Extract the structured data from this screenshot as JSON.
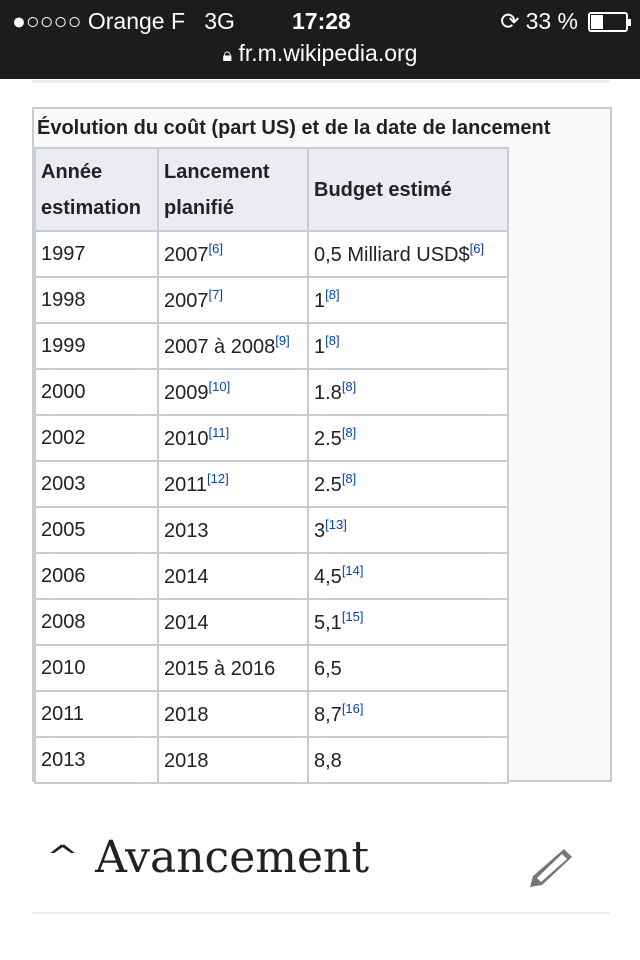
{
  "status": {
    "signal": "●○○○○",
    "carrier": "Orange F",
    "network": "3G",
    "time": "17:28",
    "battery": "33 %",
    "battery_level": 0.33,
    "url": "fr.m.wikipedia.org"
  },
  "table": {
    "caption": "Évolution du coût (part US) et de la date de lancement",
    "headers": [
      "Année estimation",
      "Lancement planifié",
      "Budget estimé"
    ],
    "rows": [
      {
        "year": "1997",
        "launch": "2007",
        "launch_ref": "[6]",
        "budget": "0,5 Milliard USD$",
        "budget_ref": "[6]"
      },
      {
        "year": "1998",
        "launch": "2007",
        "launch_ref": "[7]",
        "budget": "1",
        "budget_ref": "[8]"
      },
      {
        "year": "1999",
        "launch": "2007 à 2008",
        "launch_ref": "[9]",
        "budget": "1",
        "budget_ref": "[8]"
      },
      {
        "year": "2000",
        "launch": "2009",
        "launch_ref": "[10]",
        "budget": "1.8",
        "budget_ref": "[8]"
      },
      {
        "year": "2002",
        "launch": "2010",
        "launch_ref": "[11]",
        "budget": "2.5",
        "budget_ref": "[8]"
      },
      {
        "year": "2003",
        "launch": "2011",
        "launch_ref": "[12]",
        "budget": "2.5",
        "budget_ref": "[8]"
      },
      {
        "year": "2005",
        "launch": "2013",
        "launch_ref": "",
        "budget": "3",
        "budget_ref": "[13]"
      },
      {
        "year": "2006",
        "launch": "2014",
        "launch_ref": "",
        "budget": "4,5",
        "budget_ref": "[14]"
      },
      {
        "year": "2008",
        "launch": "2014",
        "launch_ref": "",
        "budget": "5,1",
        "budget_ref": "[15]"
      },
      {
        "year": "2010",
        "launch": "2015 à 2016",
        "launch_ref": "",
        "budget": "6,5",
        "budget_ref": ""
      },
      {
        "year": "2011",
        "launch": "2018",
        "launch_ref": "",
        "budget": "8,7",
        "budget_ref": "[16]"
      },
      {
        "year": "2013",
        "launch": "2018",
        "launch_ref": "",
        "budget": "8,8",
        "budget_ref": ""
      }
    ]
  },
  "section": {
    "title": "Avancement",
    "chevron": "^"
  }
}
